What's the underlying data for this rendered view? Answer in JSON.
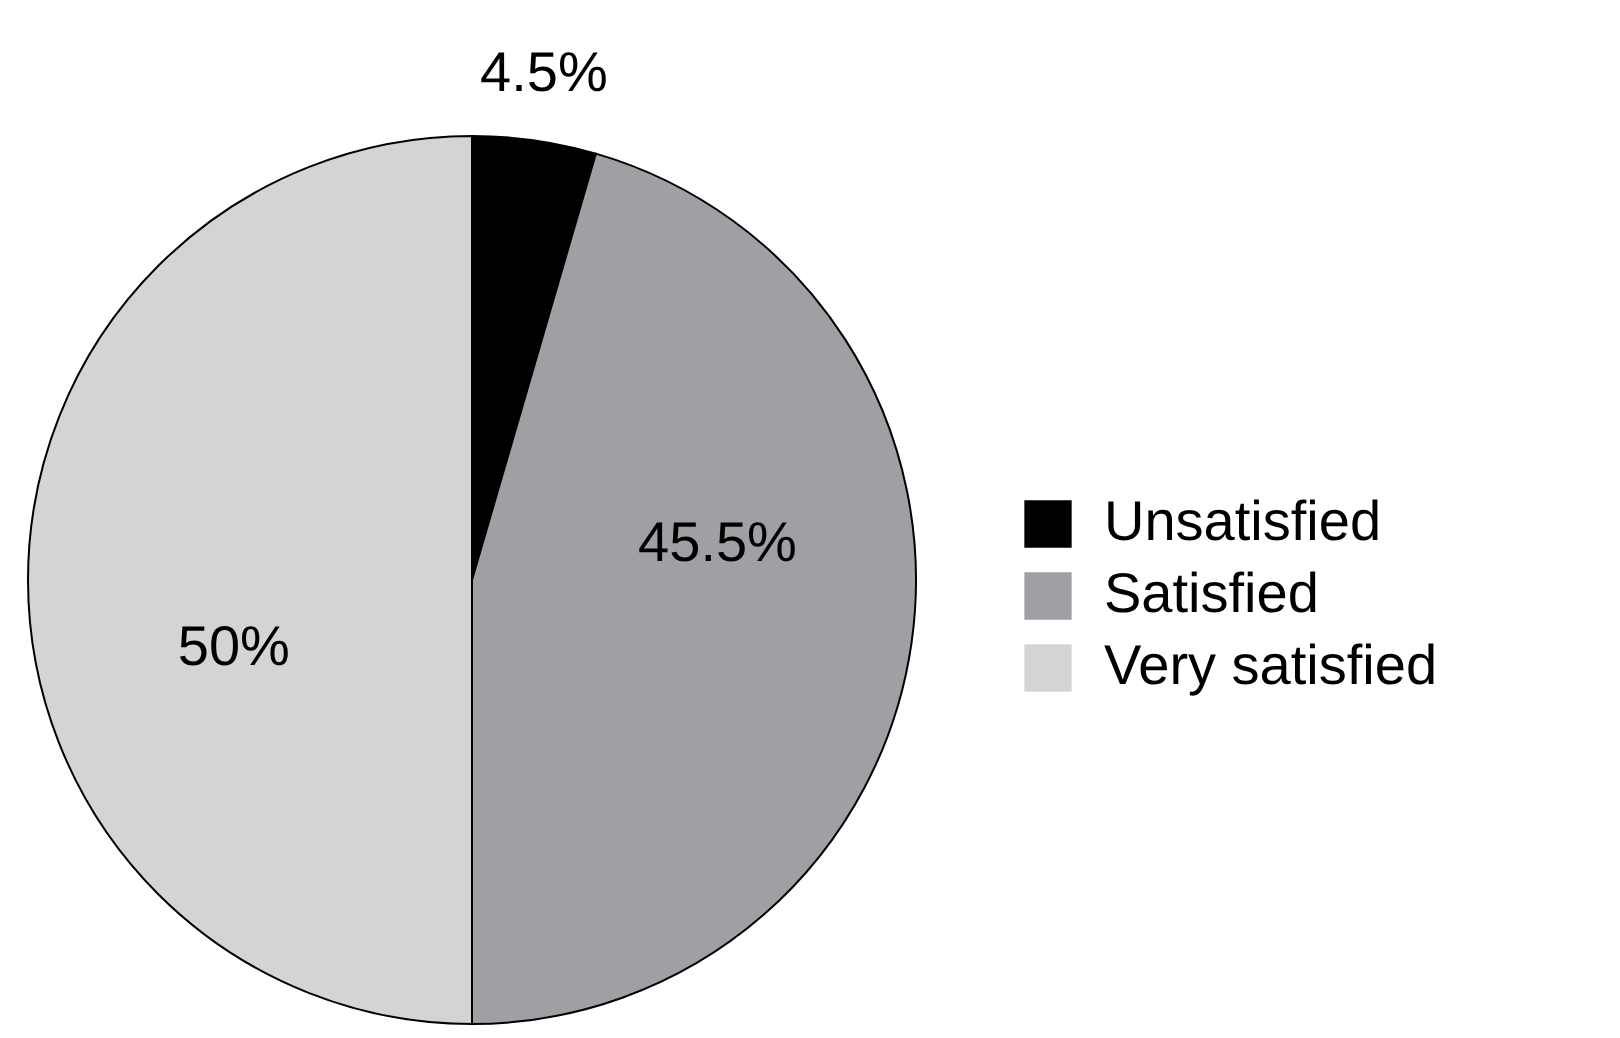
{
  "chart_data": {
    "type": "pie",
    "categories": [
      "Unsatisfied",
      "Satisfied",
      "Very satisfied"
    ],
    "values": [
      4.5,
      45.5,
      50
    ],
    "colors": [
      "#000000",
      "#a0a0a4",
      "#d4d4d4"
    ],
    "value_labels": [
      "4.5%",
      "45.5%",
      "50%"
    ],
    "legend": "right"
  }
}
